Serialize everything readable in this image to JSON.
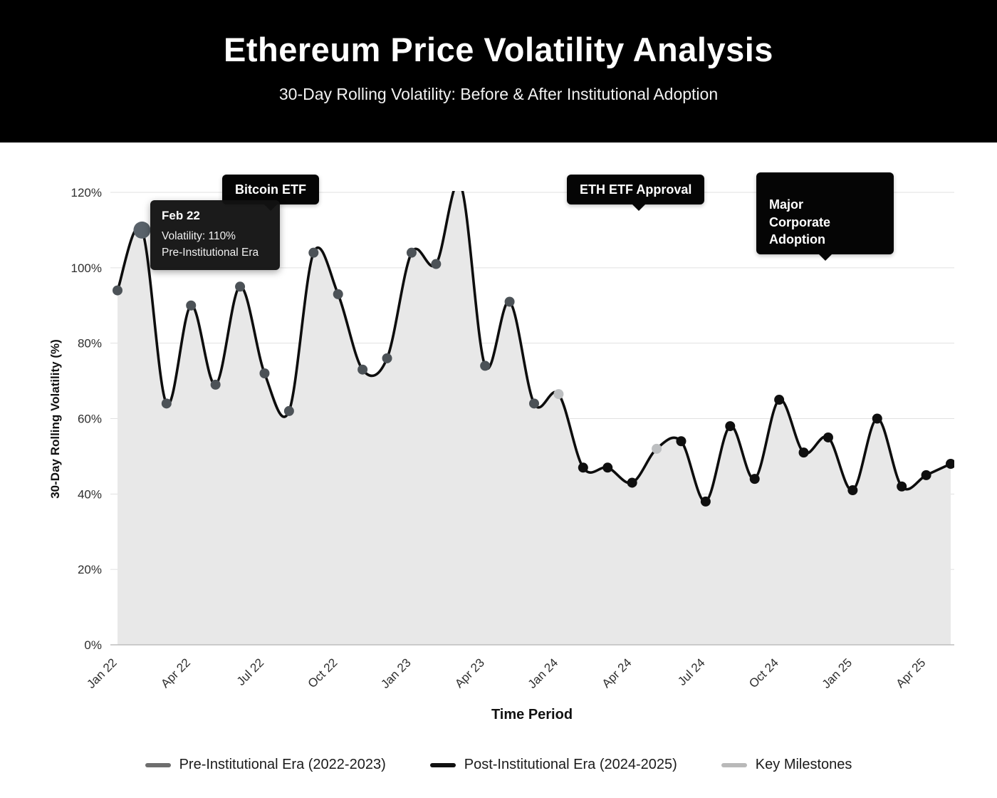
{
  "header": {
    "title": "Ethereum Price Volatility Analysis",
    "subtitle": "30-Day Rolling Volatility: Before & After Institutional Adoption"
  },
  "chart_data": {
    "type": "area",
    "xlabel": "Time Period",
    "ylabel": "30-Day Rolling Volatility (%)",
    "ylim": [
      0,
      120
    ],
    "grid": true,
    "y_ticks": [
      0,
      20,
      40,
      60,
      80,
      100,
      120
    ],
    "y_tick_labels": [
      "0%",
      "20%",
      "40%",
      "60%",
      "80%",
      "100%",
      "120%"
    ],
    "x_tick_indices": [
      0,
      3,
      6,
      9,
      12,
      15,
      18,
      21,
      24,
      27,
      30,
      33
    ],
    "x_tick_labels": [
      "Jan 22",
      "Apr 22",
      "Jul 22",
      "Oct 22",
      "Jan 23",
      "Apr 23",
      "Jan 24",
      "Apr 24",
      "Jul 24",
      "Oct 24",
      "Jan 25",
      "Apr 25"
    ],
    "values": [
      94,
      110,
      64,
      90,
      69,
      95,
      72,
      62,
      104,
      93,
      73,
      76,
      104,
      101,
      122,
      74,
      91,
      64,
      66.5,
      47,
      47,
      43,
      52,
      54,
      38,
      58,
      44,
      65,
      51,
      55,
      41,
      60,
      42,
      45,
      48
    ],
    "point_series": [
      "pre",
      "pre",
      "pre",
      "pre",
      "pre",
      "pre",
      "pre",
      "pre",
      "pre",
      "pre",
      "pre",
      "pre",
      "pre",
      "pre",
      "pre",
      "pre",
      "pre",
      "pre",
      "milestone",
      "post",
      "post",
      "post",
      "milestone",
      "post",
      "post",
      "post",
      "post",
      "post",
      "post",
      "post",
      "post",
      "post",
      "post",
      "post",
      "post"
    ],
    "highlight_index": 1,
    "highlight_color": "#59626a",
    "series_colors": {
      "pre": "#4c5257",
      "post": "#0f0f0f",
      "milestone": "#bdbfc1"
    },
    "line_color": "#0d0d0d",
    "area_fill": "#e8e8e8",
    "annotations": [
      {
        "label": "Bitcoin ETF"
      },
      {
        "label": "ETH ETF Approval"
      },
      {
        "label": "Major\nCorporate\nAdoption"
      }
    ],
    "tooltip": {
      "title": "Feb 22",
      "value_line": "Volatility: 110%",
      "series_line": "Pre-Institutional Era"
    },
    "legend": [
      {
        "label": "Pre-Institutional Era (2022-2023)",
        "color": "#6e6e6e"
      },
      {
        "label": "Post-Institutional Era (2024-2025)",
        "color": "#111111"
      },
      {
        "label": "Key Milestones",
        "color": "#b9b9b9"
      }
    ]
  }
}
